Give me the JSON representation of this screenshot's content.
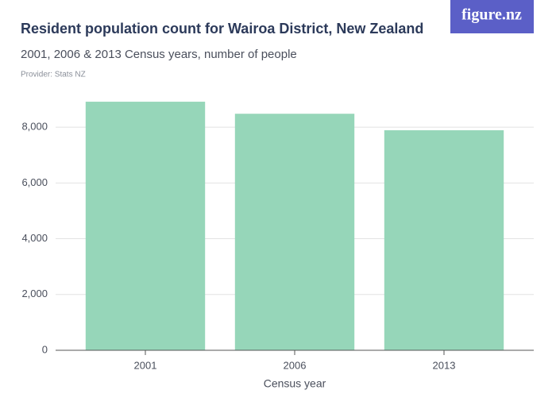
{
  "chart_data": {
    "type": "bar",
    "title": "Resident population count for Wairoa District, New Zealand",
    "subtitle": "2001, 2006 & 2013 Census years, number of people",
    "provider": "Provider: Stats NZ",
    "logo": "figure.nz",
    "x_label": "Census year",
    "categories": [
      "2001",
      "2006",
      "2013"
    ],
    "values": [
      8913,
      8481,
      7890
    ],
    "color": "#96d6b9",
    "ylim": [
      0,
      9000
    ],
    "yticks": [
      0,
      {
        "value": 2000,
        "label": "2,000"
      },
      {
        "value": 4000,
        "label": "4,000"
      },
      {
        "value": 6000,
        "label": "6,000"
      },
      {
        "value": 8000,
        "label": "8,000"
      }
    ],
    "grid": true
  }
}
